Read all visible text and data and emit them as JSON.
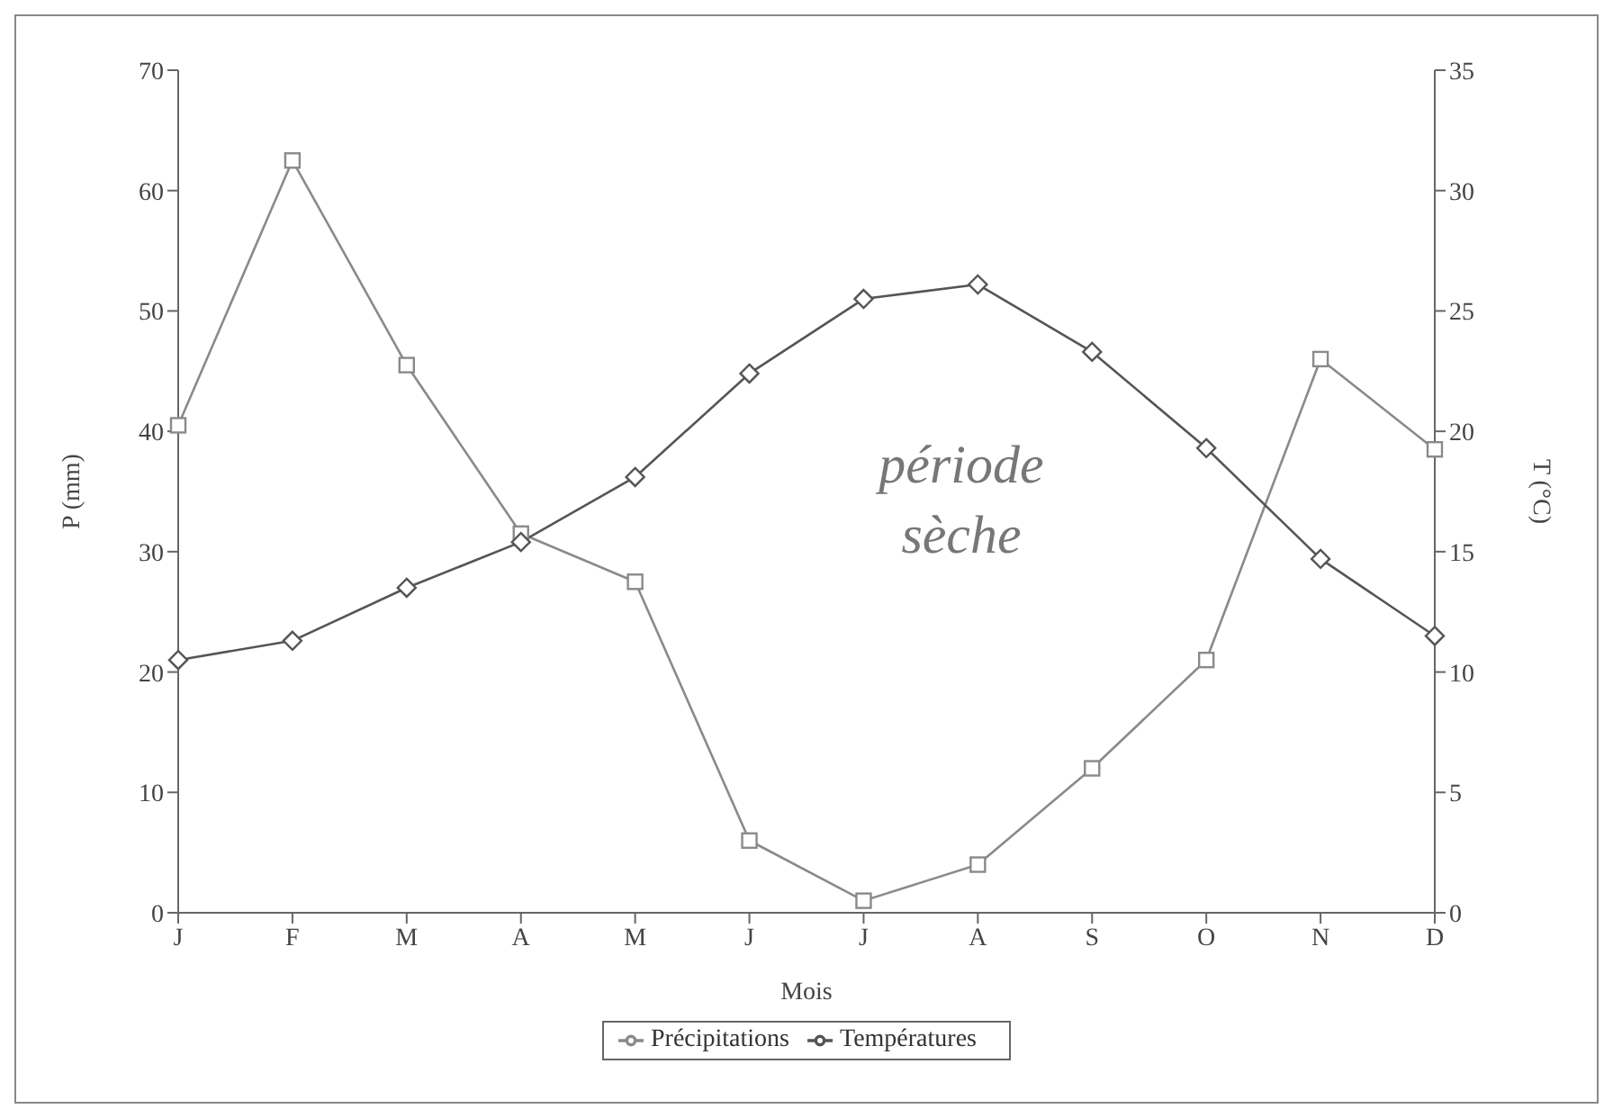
{
  "chart_data": {
    "type": "line",
    "categories": [
      "J",
      "F",
      "M",
      "A",
      "M",
      "J",
      "J",
      "A",
      "S",
      "O",
      "N",
      "D"
    ],
    "xlabel": "Mois",
    "ylabel": "P (mm)",
    "y2label": "T (°C)",
    "ylim": [
      0,
      70
    ],
    "yticks": [
      0,
      10,
      20,
      30,
      40,
      50,
      60,
      70
    ],
    "y2lim": [
      0,
      35
    ],
    "y2ticks": [
      0,
      5,
      10,
      15,
      20,
      25,
      30,
      35
    ],
    "series": [
      {
        "name": "Précipitations",
        "color": "#8a8a8a",
        "marker": "square",
        "values": [
          40.5,
          62.5,
          45.5,
          31.5,
          27.5,
          6,
          1,
          4,
          12,
          21,
          46,
          38.5
        ]
      },
      {
        "name": "Températures",
        "type": "line",
        "axis": "y2",
        "color": "#555555",
        "marker": "diamond",
        "values": [
          10.5,
          11.3,
          13.5,
          15.4,
          18.1,
          22.4,
          25.5,
          26.1,
          23.3,
          19.3,
          14.7,
          11.5
        ]
      }
    ],
    "grid": false,
    "legend": "bottom",
    "annotations": [
      "période sèche"
    ]
  }
}
